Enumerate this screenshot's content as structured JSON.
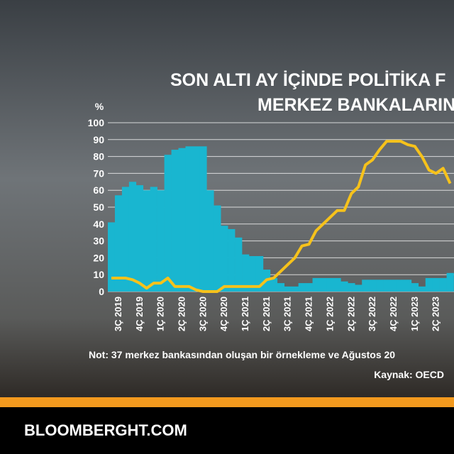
{
  "chart_data": {
    "type": "bar-line",
    "title_lines": [
      "SON ALTI AY İÇİNDE POLİTİKA F",
      "MERKEZ BANKALARIN"
    ],
    "ylabel": "%",
    "categories": [
      null,
      "3Ç 2019",
      null,
      null,
      "4Ç 2019",
      null,
      null,
      "1Ç 2020",
      null,
      null,
      "2Ç 2020",
      null,
      null,
      "3Ç 2020",
      null,
      null,
      "4Ç 2020",
      null,
      null,
      "1Ç 2021",
      null,
      null,
      "2Ç 2021",
      null,
      null,
      "3Ç 2021",
      null,
      null,
      "4Ç 2021",
      null,
      null,
      "1Ç 2022",
      null,
      null,
      "2Ç 2022",
      null,
      null,
      "3Ç 2022",
      null,
      null,
      "4Ç 2022",
      null,
      null,
      "1Ç 2023",
      null,
      null,
      "2Ç 2023",
      null,
      null
    ],
    "series": [
      {
        "type": "bar",
        "color": "#19b6d0",
        "values": [
          41,
          57,
          62,
          65,
          63,
          60,
          62,
          60,
          81,
          84,
          85,
          86,
          86,
          86,
          60,
          51,
          39,
          37,
          32,
          22,
          21,
          21,
          13,
          8,
          5,
          3,
          3,
          5,
          5,
          8,
          8,
          8,
          8,
          6,
          5,
          4,
          7,
          7,
          7,
          7,
          7,
          7,
          7,
          5,
          3,
          8,
          8,
          8,
          11
        ]
      },
      {
        "type": "line",
        "color": "#f6c21b",
        "values": [
          8,
          8,
          8,
          7,
          5,
          2,
          5,
          5,
          8,
          3,
          3,
          3,
          1,
          0,
          0,
          0,
          3,
          3,
          3,
          3,
          3,
          3,
          7,
          8,
          12,
          16,
          20,
          27,
          28,
          36,
          40,
          44,
          48,
          48,
          58,
          62,
          75,
          78,
          84,
          89,
          89,
          89,
          87,
          86,
          80,
          72,
          70,
          73,
          64
        ]
      }
    ],
    "ylim": [
      0,
      100
    ],
    "yticks": [
      0,
      10,
      20,
      30,
      40,
      50,
      60,
      70,
      80,
      90,
      100
    ],
    "grid": true,
    "note": "Not: 37 merkez bankasından oluşan bir örnekleme ve Ağustos 20",
    "source": "Kaynak: OECD"
  },
  "footer": {
    "brand": "BLOOMBERGHT.COM"
  }
}
